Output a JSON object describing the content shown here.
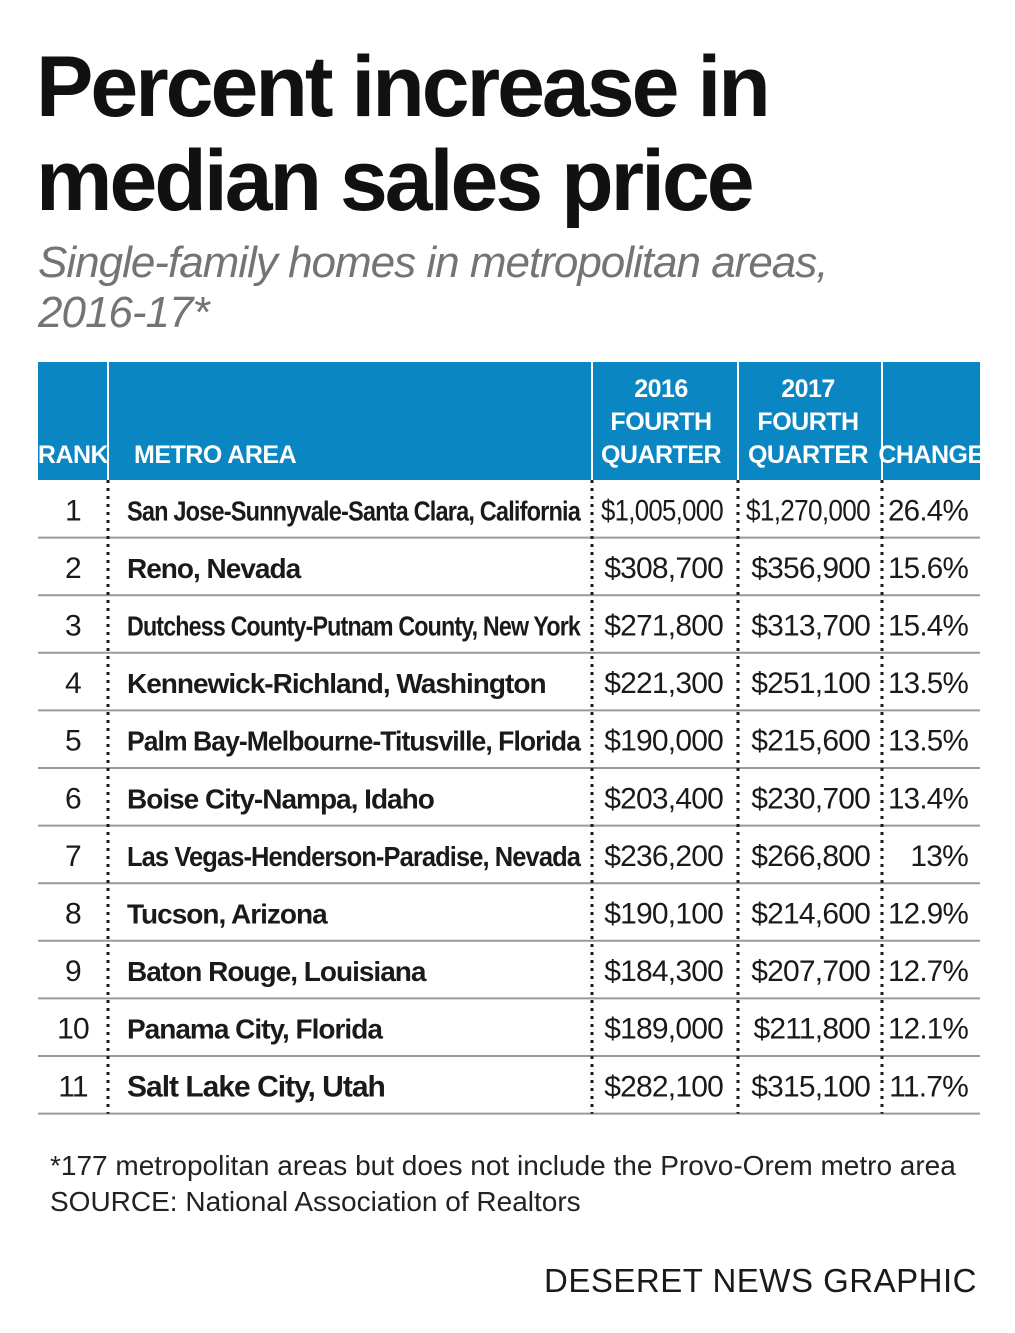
{
  "title_line1": "Percent increase in",
  "title_line2": "median sales price",
  "subtitle_line1": "Single-family homes in metropolitan areas,",
  "subtitle_line2": "2016-17*",
  "colors": {
    "header_bg": "#0a87c2",
    "header_text": "#ffffff",
    "row_rule": "#9a9a9a",
    "title": "#111111",
    "subtitle": "#747474"
  },
  "chart_data": {
    "type": "table",
    "columns": [
      {
        "key": "rank",
        "label_lines": [
          "RANK"
        ]
      },
      {
        "key": "metro",
        "label_lines": [
          "METRO AREA"
        ]
      },
      {
        "key": "q4_2016",
        "label_lines": [
          "2016",
          "FOURTH",
          "QUARTER"
        ]
      },
      {
        "key": "q4_2017",
        "label_lines": [
          "2017",
          "FOURTH",
          "QUARTER"
        ]
      },
      {
        "key": "change",
        "label_lines": [
          "CHANGE"
        ]
      }
    ],
    "rows": [
      {
        "rank": "1",
        "metro": "San Jose-Sunnyvale-Santa Clara, California",
        "q4_2016": "$1,005,000",
        "q4_2017": "$1,270,000",
        "change": "26.4%",
        "highlight": false
      },
      {
        "rank": "2",
        "metro": "Reno, Nevada",
        "q4_2016": "$308,700",
        "q4_2017": "$356,900",
        "change": "15.6%",
        "highlight": false
      },
      {
        "rank": "3",
        "metro": "Dutchess County-Putnam County, New York",
        "q4_2016": "$271,800",
        "q4_2017": "$313,700",
        "change": "15.4%",
        "highlight": false
      },
      {
        "rank": "4",
        "metro": "Kennewick-Richland, Washington",
        "q4_2016": "$221,300",
        "q4_2017": "$251,100",
        "change": "13.5%",
        "highlight": false
      },
      {
        "rank": "5",
        "metro": "Palm Bay-Melbourne-Titusville, Florida",
        "q4_2016": "$190,000",
        "q4_2017": "$215,600",
        "change": "13.5%",
        "highlight": false
      },
      {
        "rank": "6",
        "metro": "Boise City-Nampa, Idaho",
        "q4_2016": "$203,400",
        "q4_2017": "$230,700",
        "change": "13.4%",
        "highlight": false
      },
      {
        "rank": "7",
        "metro": "Las Vegas-Henderson-Paradise, Nevada",
        "q4_2016": "$236,200",
        "q4_2017": "$266,800",
        "change": "13%",
        "highlight": false
      },
      {
        "rank": "8",
        "metro": "Tucson, Arizona",
        "q4_2016": "$190,100",
        "q4_2017": "$214,600",
        "change": "12.9%",
        "highlight": false
      },
      {
        "rank": "9",
        "metro": "Baton Rouge, Louisiana",
        "q4_2016": "$184,300",
        "q4_2017": "$207,700",
        "change": "12.7%",
        "highlight": false
      },
      {
        "rank": "10",
        "metro": "Panama City, Florida",
        "q4_2016": "$189,000",
        "q4_2017": "$211,800",
        "change": "12.1%",
        "highlight": false
      },
      {
        "rank": "11",
        "metro": "Salt Lake City, Utah",
        "q4_2016": "$282,100",
        "q4_2017": "$315,100",
        "change": "11.7%",
        "highlight": true
      }
    ]
  },
  "footnote": "*177 metropolitan areas but does not include the Provo-Orem metro area",
  "source": "SOURCE: National Association of Realtors",
  "credit": "DESERET NEWS GRAPHIC"
}
